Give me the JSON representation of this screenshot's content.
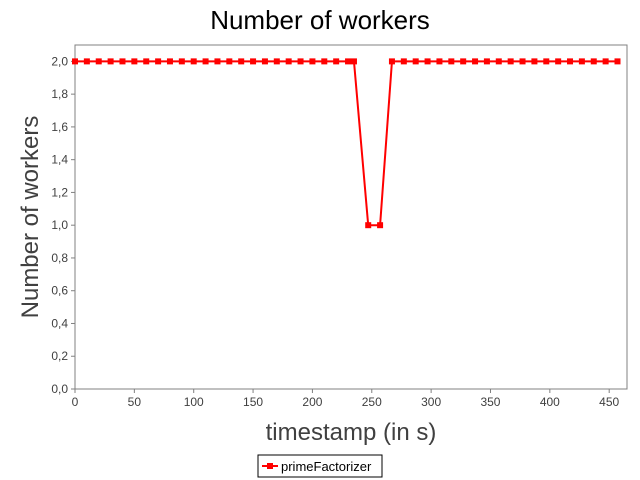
{
  "chart_data": {
    "type": "line",
    "title": "Number of workers",
    "xlabel": "timestamp (in s)",
    "ylabel": "Number of workers",
    "xlim": [
      0,
      465
    ],
    "ylim": [
      0,
      2.1
    ],
    "x_ticks": [
      0,
      50,
      100,
      150,
      200,
      250,
      300,
      350,
      400,
      450
    ],
    "x_tick_labels": [
      "0",
      "50",
      "100",
      "150",
      "200",
      "250",
      "300",
      "350",
      "400",
      "450"
    ],
    "y_ticks": [
      0,
      0.2,
      0.4,
      0.6,
      0.8,
      1.0,
      1.2,
      1.4,
      1.6,
      1.8,
      2.0
    ],
    "y_tick_labels": [
      "0,0",
      "0,2",
      "0,4",
      "0,6",
      "0,8",
      "1,0",
      "1,2",
      "1,4",
      "1,6",
      "1,8",
      "2,0"
    ],
    "grid": false,
    "legend_position": "bottom-center",
    "series": [
      {
        "name": "primeFactorizer",
        "color": "#ff0000",
        "marker": "square",
        "x": [
          0,
          10,
          20,
          30,
          40,
          50,
          60,
          70,
          80,
          90,
          100,
          110,
          120,
          130,
          140,
          150,
          160,
          170,
          180,
          190,
          200,
          210,
          220,
          230,
          235,
          247,
          257,
          267,
          277,
          287,
          297,
          307,
          317,
          327,
          337,
          347,
          357,
          367,
          377,
          387,
          397,
          407,
          417,
          427,
          437,
          447,
          457
        ],
        "y": [
          2,
          2,
          2,
          2,
          2,
          2,
          2,
          2,
          2,
          2,
          2,
          2,
          2,
          2,
          2,
          2,
          2,
          2,
          2,
          2,
          2,
          2,
          2,
          2,
          2,
          1,
          1,
          2,
          2,
          2,
          2,
          2,
          2,
          2,
          2,
          2,
          2,
          2,
          2,
          2,
          2,
          2,
          2,
          2,
          2,
          2,
          2
        ]
      }
    ]
  }
}
